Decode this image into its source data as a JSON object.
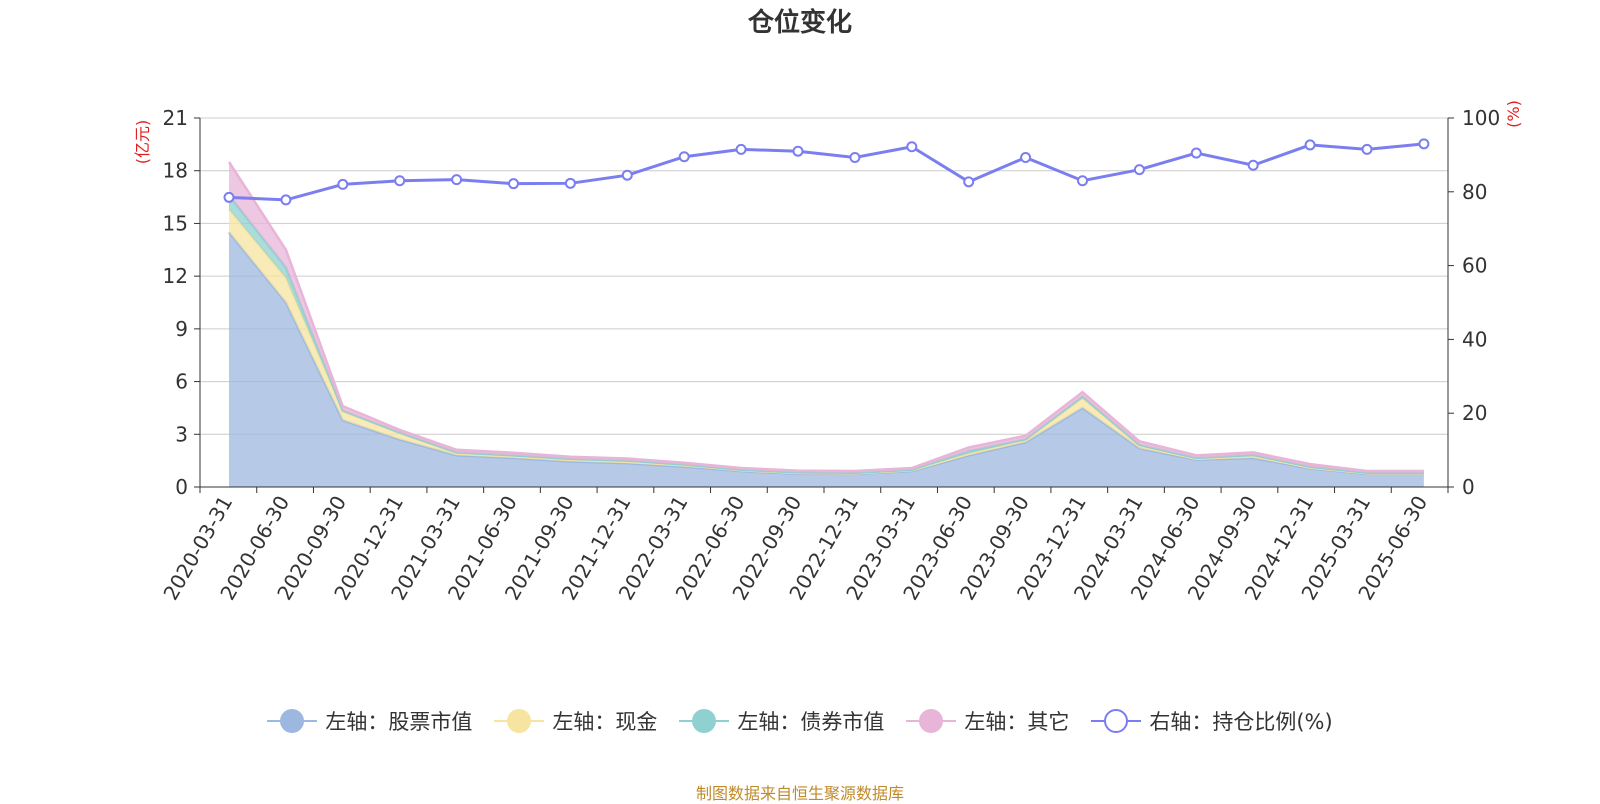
{
  "title": "仓位变化",
  "source_note": "制图数据来自恒生聚源数据库",
  "legend": [
    {
      "label": "左轴：股票市值",
      "color": "#9db8e0",
      "style": "filled"
    },
    {
      "label": "左轴：现金",
      "color": "#f7e4a0",
      "style": "filled"
    },
    {
      "label": "左轴：债券市值",
      "color": "#8fd0d0",
      "style": "filled"
    },
    {
      "label": "左轴：其它",
      "color": "#e8b4d8",
      "style": "filled"
    },
    {
      "label": "右轴：持仓比例(%)",
      "color": "#7b7ef0",
      "style": "hollow"
    }
  ],
  "chart_data": {
    "type": "area",
    "title": "仓位变化",
    "y_left_label": "(亿元)",
    "y_right_label": "(%)",
    "y_left_lim": [
      0,
      21
    ],
    "y_left_ticks": [
      0,
      3,
      6,
      9,
      12,
      15,
      18,
      21
    ],
    "y_right_lim": [
      0,
      100
    ],
    "y_right_ticks": [
      0,
      20,
      40,
      60,
      80,
      100
    ],
    "grid": true,
    "stacked": true,
    "categories": [
      "2020-03-31",
      "2020-06-30",
      "2020-09-30",
      "2020-12-31",
      "2021-03-31",
      "2021-06-30",
      "2021-09-30",
      "2021-12-31",
      "2022-03-31",
      "2022-06-30",
      "2022-09-30",
      "2022-12-31",
      "2023-03-31",
      "2023-06-30",
      "2023-09-30",
      "2023-12-31",
      "2024-03-31",
      "2024-06-30",
      "2024-09-30",
      "2024-12-31",
      "2025-03-31",
      "2025-06-30"
    ],
    "series": [
      {
        "name": "股票市值",
        "axis": "left",
        "color": "#9db8e0",
        "values": [
          14.5,
          10.5,
          3.8,
          2.7,
          1.8,
          1.65,
          1.45,
          1.35,
          1.15,
          0.9,
          0.75,
          0.75,
          0.9,
          1.8,
          2.55,
          4.5,
          2.2,
          1.55,
          1.65,
          1.05,
          0.75,
          0.75
        ]
      },
      {
        "name": "现金",
        "axis": "left",
        "color": "#f7e4a0",
        "values": [
          1.3,
          1.4,
          0.5,
          0.35,
          0.12,
          0.1,
          0.1,
          0.1,
          0.1,
          0.05,
          0.05,
          0.03,
          0.05,
          0.1,
          0.12,
          0.55,
          0.15,
          0.05,
          0.12,
          0.05,
          0.03,
          0.03
        ]
      },
      {
        "name": "债券市值",
        "axis": "left",
        "color": "#8fd0d0",
        "values": [
          0.8,
          0.6,
          0.05,
          0.05,
          0.05,
          0.05,
          0.05,
          0.05,
          0.03,
          0.03,
          0.03,
          0.03,
          0.03,
          0.15,
          0.05,
          0.1,
          0.05,
          0.05,
          0.05,
          0.05,
          0.03,
          0.03
        ]
      },
      {
        "name": "其它",
        "axis": "left",
        "color": "#e8b4d8",
        "values": [
          1.9,
          1.0,
          0.25,
          0.15,
          0.15,
          0.15,
          0.12,
          0.12,
          0.1,
          0.1,
          0.1,
          0.1,
          0.1,
          0.2,
          0.2,
          0.25,
          0.2,
          0.15,
          0.15,
          0.15,
          0.1,
          0.1
        ]
      },
      {
        "name": "持仓比例(%)",
        "axis": "right",
        "color": "#7b7ef0",
        "values": [
          78.5,
          77.8,
          82.0,
          83.0,
          83.3,
          82.2,
          82.3,
          84.5,
          89.5,
          91.5,
          91.0,
          89.3,
          92.2,
          82.7,
          89.3,
          83.0,
          86.0,
          90.5,
          87.2,
          92.7,
          91.5,
          93.0
        ]
      }
    ]
  }
}
